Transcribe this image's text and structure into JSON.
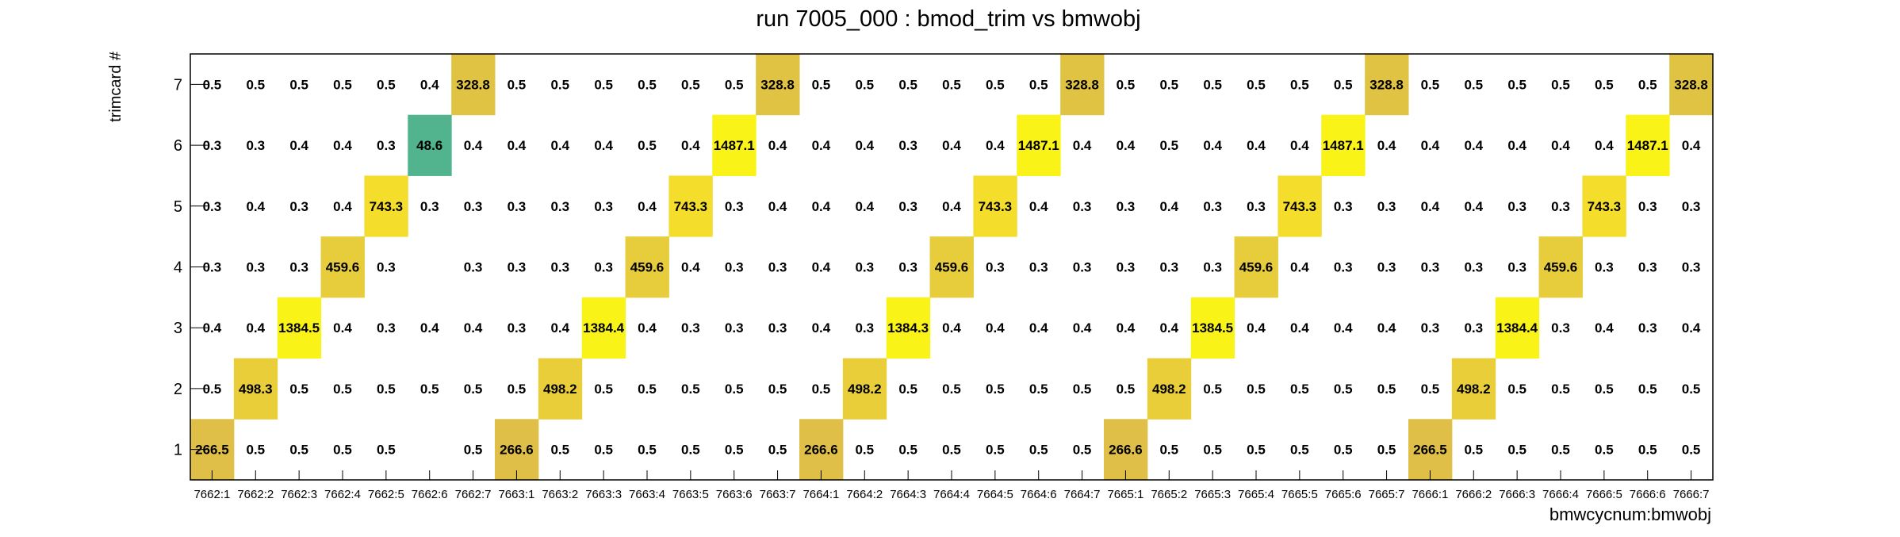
{
  "chart_data": {
    "type": "heatmap",
    "title": "run 7005_000 : bmod_trim vs bmwobj",
    "xlabel": "bmwcycnum:bmwobj",
    "ylabel": "trimcard #",
    "x_categories": [
      "7662:1",
      "7662:2",
      "7662:3",
      "7662:4",
      "7662:5",
      "7662:6",
      "7662:7",
      "7663:1",
      "7663:2",
      "7663:3",
      "7663:4",
      "7663:5",
      "7663:6",
      "7663:7",
      "7664:1",
      "7664:2",
      "7664:3",
      "7664:4",
      "7664:5",
      "7664:6",
      "7664:7",
      "7665:1",
      "7665:2",
      "7665:3",
      "7665:4",
      "7665:5",
      "7665:6",
      "7665:7",
      "7666:1",
      "7666:2",
      "7666:3",
      "7666:4",
      "7666:5",
      "7666:6",
      "7666:7"
    ],
    "y_categories": [
      "1",
      "2",
      "3",
      "4",
      "5",
      "6",
      "7"
    ],
    "grid": false,
    "cells": [
      [
        "266.5",
        "0.5",
        "0.5",
        "0.5",
        "0.5",
        null,
        "0.5",
        "266.6",
        "0.5",
        "0.5",
        "0.5",
        "0.5",
        "0.5",
        "0.5",
        "266.6",
        "0.5",
        "0.5",
        "0.5",
        "0.5",
        "0.5",
        "0.5",
        "266.6",
        "0.5",
        "0.5",
        "0.5",
        "0.5",
        "0.5",
        "0.5",
        "266.5",
        "0.5",
        "0.5",
        "0.5",
        "0.5",
        "0.5",
        "0.5"
      ],
      [
        "0.5",
        "498.3",
        "0.5",
        "0.5",
        "0.5",
        "0.5",
        "0.5",
        "0.5",
        "498.2",
        "0.5",
        "0.5",
        "0.5",
        "0.5",
        "0.5",
        "0.5",
        "498.2",
        "0.5",
        "0.5",
        "0.5",
        "0.5",
        "0.5",
        "0.5",
        "498.2",
        "0.5",
        "0.5",
        "0.5",
        "0.5",
        "0.5",
        "0.5",
        "498.2",
        "0.5",
        "0.5",
        "0.5",
        "0.5",
        "0.5"
      ],
      [
        "0.4",
        "0.4",
        "1384.5",
        "0.4",
        "0.3",
        "0.4",
        "0.4",
        "0.3",
        "0.4",
        "1384.4",
        "0.4",
        "0.3",
        "0.3",
        "0.3",
        "0.4",
        "0.3",
        "1384.3",
        "0.4",
        "0.4",
        "0.4",
        "0.4",
        "0.4",
        "0.4",
        "1384.5",
        "0.4",
        "0.4",
        "0.4",
        "0.4",
        "0.3",
        "0.3",
        "1384.4",
        "0.3",
        "0.4",
        "0.3",
        "0.4"
      ],
      [
        "0.3",
        "0.3",
        "0.3",
        "459.6",
        "0.3",
        null,
        "0.3",
        "0.3",
        "0.3",
        "0.3",
        "459.6",
        "0.4",
        "0.3",
        "0.3",
        "0.4",
        "0.3",
        "0.3",
        "459.6",
        "0.3",
        "0.3",
        "0.3",
        "0.3",
        "0.3",
        "0.3",
        "459.6",
        "0.4",
        "0.3",
        "0.3",
        "0.3",
        "0.3",
        "0.3",
        "459.6",
        "0.3",
        "0.3",
        "0.3"
      ],
      [
        "0.3",
        "0.4",
        "0.3",
        "0.4",
        "743.3",
        "0.3",
        "0.3",
        "0.3",
        "0.3",
        "0.3",
        "0.4",
        "743.3",
        "0.3",
        "0.4",
        "0.4",
        "0.4",
        "0.3",
        "0.4",
        "743.3",
        "0.4",
        "0.3",
        "0.3",
        "0.4",
        "0.3",
        "0.3",
        "743.3",
        "0.3",
        "0.3",
        "0.4",
        "0.4",
        "0.3",
        "0.3",
        "743.3",
        "0.3",
        "0.3"
      ],
      [
        "0.3",
        "0.3",
        "0.4",
        "0.4",
        "0.3",
        "48.6",
        "0.4",
        "0.4",
        "0.4",
        "0.4",
        "0.5",
        "0.4",
        "1487.1",
        "0.4",
        "0.4",
        "0.4",
        "0.3",
        "0.4",
        "0.4",
        "1487.1",
        "0.4",
        "0.4",
        "0.5",
        "0.4",
        "0.4",
        "0.4",
        "1487.1",
        "0.4",
        "0.4",
        "0.4",
        "0.4",
        "0.4",
        "0.4",
        "1487.1",
        "0.4"
      ],
      [
        "0.5",
        "0.5",
        "0.5",
        "0.5",
        "0.5",
        "0.4",
        "328.8",
        "0.5",
        "0.5",
        "0.5",
        "0.5",
        "0.5",
        "0.5",
        "328.8",
        "0.5",
        "0.5",
        "0.5",
        "0.5",
        "0.5",
        "0.5",
        "328.8",
        "0.5",
        "0.5",
        "0.5",
        "0.5",
        "0.5",
        "0.5",
        "328.8",
        "0.5",
        "0.5",
        "0.5",
        "0.5",
        "0.5",
        "0.5",
        "328.8"
      ]
    ],
    "palette": {
      "low": "#1f9e89",
      "mid": "#e2bd3e",
      "high": "#f9f318",
      "green": "#52b48e"
    }
  }
}
